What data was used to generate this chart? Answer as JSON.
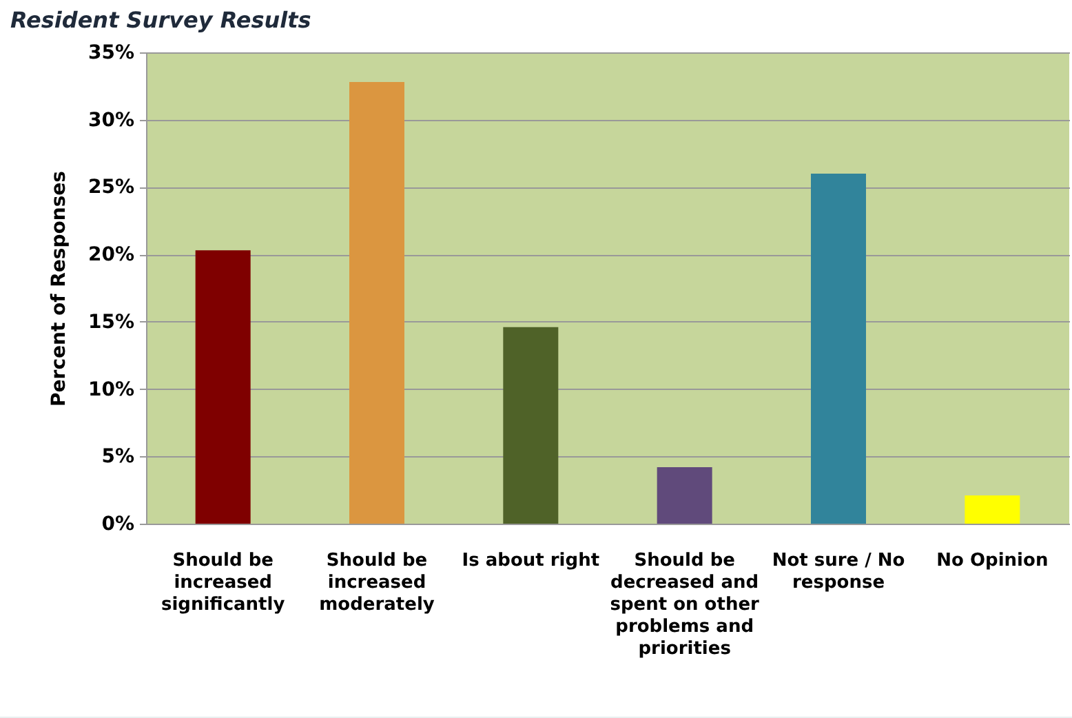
{
  "chart_data": {
    "type": "bar",
    "title": "Resident Survey Results",
    "ylabel": "Percent of Responses",
    "categories": [
      "Should be increased significantly",
      "Should be increased moderately",
      "Is about right",
      "Should be decreased and spent on other problems and priorities",
      "Not sure / No response",
      "No Opinion"
    ],
    "values": [
      20.3,
      32.8,
      14.6,
      4.2,
      26.0,
      2.1
    ],
    "colors": [
      "#7f0000",
      "#db9640",
      "#4f6228",
      "#604a7b",
      "#31849b",
      "#ffff00"
    ],
    "ylim": [
      0,
      35
    ],
    "yticks": [
      {
        "value": 0,
        "label": "0%"
      },
      {
        "value": 5,
        "label": "5%"
      },
      {
        "value": 10,
        "label": "10%"
      },
      {
        "value": 15,
        "label": "15%"
      },
      {
        "value": 20,
        "label": "20%"
      },
      {
        "value": 25,
        "label": "25%"
      },
      {
        "value": 30,
        "label": "30%"
      },
      {
        "value": 35,
        "label": "35%"
      }
    ],
    "grid": "y"
  }
}
